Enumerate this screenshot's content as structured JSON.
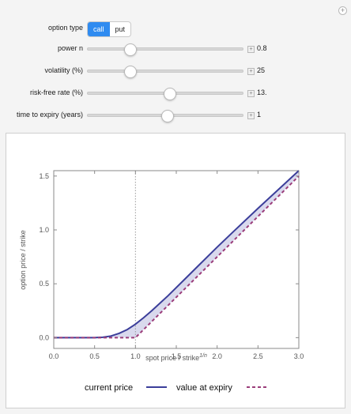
{
  "controls": {
    "option_type": {
      "label": "option type",
      "options": [
        "call",
        "put"
      ],
      "selected": "call"
    },
    "power_n": {
      "label": "power n",
      "value": "0.8",
      "fraction": 0.27
    },
    "volatility": {
      "label": "volatility (%)",
      "value": "25",
      "fraction": 0.27
    },
    "risk_free": {
      "label": "risk-free rate (%)",
      "value": "13.",
      "fraction": 0.52
    },
    "expiry": {
      "label": "time to expiry (years)",
      "value": "1",
      "fraction": 0.5
    }
  },
  "chart_data": {
    "type": "line",
    "xlabel": "spot price / strike",
    "xlabel_sup": "1/n",
    "ylabel": "option price / strike",
    "xlim": [
      0,
      3.0
    ],
    "ylim": [
      -0.1,
      1.55
    ],
    "xticks": [
      "0.0",
      "0.5",
      "1.0",
      "1.5",
      "2.0",
      "2.5",
      "3.0"
    ],
    "yticks": [
      "0.0",
      "0.5",
      "1.0",
      "1.5"
    ],
    "strike_marker_x": 1.0,
    "series": [
      {
        "name": "current price",
        "color": "#3b3e9a",
        "style": "solid",
        "x": [
          0,
          0.5,
          0.6,
          0.7,
          0.8,
          0.9,
          1.0,
          1.1,
          1.2,
          1.4,
          1.6,
          1.8,
          2.0,
          2.2,
          2.5,
          2.8,
          3.0
        ],
        "y": [
          0,
          0,
          0.004,
          0.015,
          0.04,
          0.075,
          0.125,
          0.185,
          0.25,
          0.39,
          0.54,
          0.69,
          0.84,
          0.985,
          1.2,
          1.41,
          1.55
        ]
      },
      {
        "name": "value at expiry",
        "color": "#9b3d7a",
        "style": "dashed",
        "x": [
          0,
          1.0,
          3.0
        ],
        "y": [
          0,
          0,
          1.5
        ]
      }
    ],
    "legend": [
      "current price",
      "value at expiry"
    ],
    "legend_position": "bottom"
  }
}
